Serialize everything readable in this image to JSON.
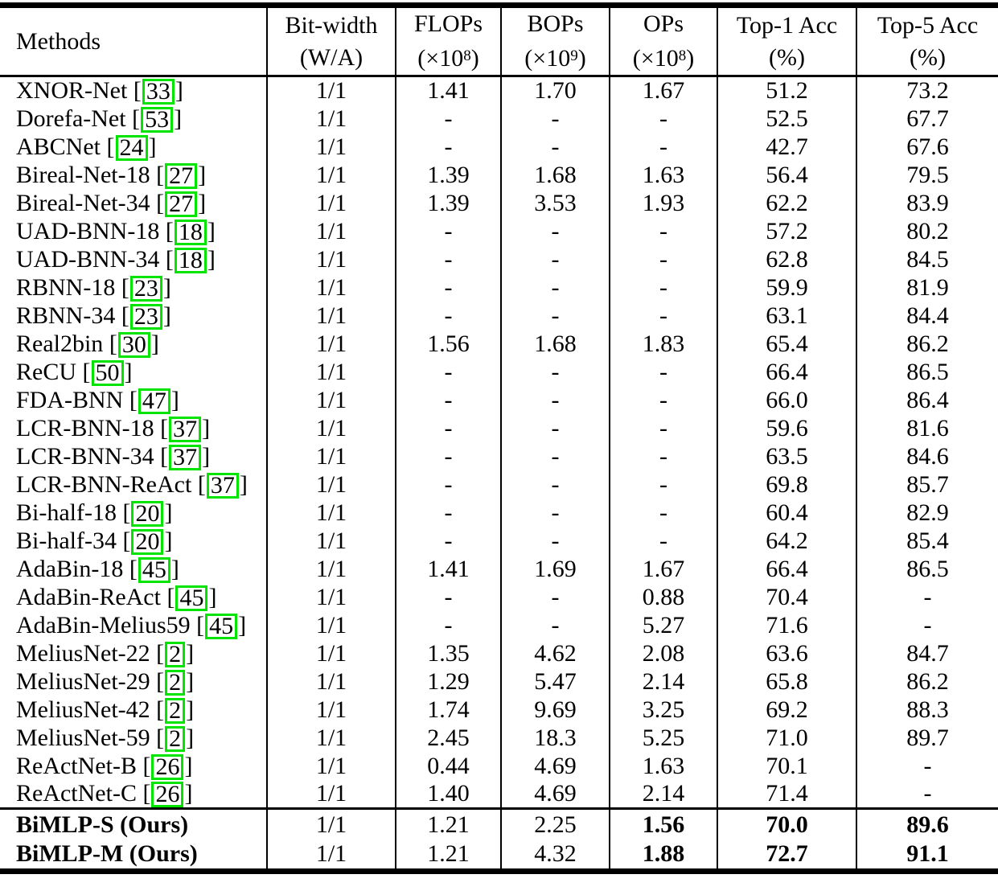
{
  "colors": {
    "citation_box": "#00e400",
    "rule": "#000000",
    "background": "#ffffff"
  },
  "table": {
    "columns": [
      {
        "id": "method",
        "line1": "Methods",
        "line2": ""
      },
      {
        "id": "bitwidth",
        "line1": "Bit-width",
        "line2": "(W/A)"
      },
      {
        "id": "flops",
        "line1": "FLOPs",
        "unit_pre": "(×10",
        "unit_sup": "8",
        "unit_post": ")"
      },
      {
        "id": "bops",
        "line1": "BOPs",
        "unit_pre": "(×10",
        "unit_sup": "9",
        "unit_post": ")"
      },
      {
        "id": "ops",
        "line1": "OPs",
        "unit_pre": "(×10",
        "unit_sup": "8",
        "unit_post": ")"
      },
      {
        "id": "top1",
        "line1": "Top-1 Acc",
        "line2": "(%)"
      },
      {
        "id": "top5",
        "line1": "Top-5 Acc",
        "line2": "(%)"
      }
    ],
    "rows": [
      {
        "method": "XNOR-Net",
        "cite": "33",
        "bitwidth": "1/1",
        "flops": "1.41",
        "bops": "1.70",
        "ops": "1.67",
        "top1": "51.2",
        "top5": "73.2"
      },
      {
        "method": "Dorefa-Net",
        "cite": "53",
        "bitwidth": "1/1",
        "flops": "-",
        "bops": "-",
        "ops": "-",
        "top1": "52.5",
        "top5": "67.7"
      },
      {
        "method": "ABCNet",
        "cite": "24",
        "bitwidth": "1/1",
        "flops": "-",
        "bops": "-",
        "ops": "-",
        "top1": "42.7",
        "top5": "67.6"
      },
      {
        "method": "Bireal-Net-18",
        "cite": "27",
        "bitwidth": "1/1",
        "flops": "1.39",
        "bops": "1.68",
        "ops": "1.63",
        "top1": "56.4",
        "top5": "79.5"
      },
      {
        "method": "Bireal-Net-34",
        "cite": "27",
        "bitwidth": "1/1",
        "flops": "1.39",
        "bops": "3.53",
        "ops": "1.93",
        "top1": "62.2",
        "top5": "83.9"
      },
      {
        "method": "UAD-BNN-18",
        "cite": "18",
        "bitwidth": "1/1",
        "flops": "-",
        "bops": "-",
        "ops": "-",
        "top1": "57.2",
        "top5": "80.2"
      },
      {
        "method": "UAD-BNN-34",
        "cite": "18",
        "bitwidth": "1/1",
        "flops": "-",
        "bops": "-",
        "ops": "-",
        "top1": "62.8",
        "top5": "84.5"
      },
      {
        "method": "RBNN-18",
        "cite": "23",
        "bitwidth": "1/1",
        "flops": "-",
        "bops": "-",
        "ops": "-",
        "top1": "59.9",
        "top5": "81.9"
      },
      {
        "method": "RBNN-34",
        "cite": "23",
        "bitwidth": "1/1",
        "flops": "-",
        "bops": "-",
        "ops": "-",
        "top1": "63.1",
        "top5": "84.4"
      },
      {
        "method": "Real2bin",
        "cite": "30",
        "bitwidth": "1/1",
        "flops": "1.56",
        "bops": "1.68",
        "ops": "1.83",
        "top1": "65.4",
        "top5": "86.2"
      },
      {
        "method": "ReCU",
        "cite": "50",
        "bitwidth": "1/1",
        "flops": "-",
        "bops": "-",
        "ops": "-",
        "top1": "66.4",
        "top5": "86.5"
      },
      {
        "method": "FDA-BNN",
        "cite": "47",
        "bitwidth": "1/1",
        "flops": "-",
        "bops": "-",
        "ops": "-",
        "top1": "66.0",
        "top5": "86.4"
      },
      {
        "method": "LCR-BNN-18",
        "cite": "37",
        "bitwidth": "1/1",
        "flops": "-",
        "bops": "-",
        "ops": "-",
        "top1": "59.6",
        "top5": "81.6"
      },
      {
        "method": "LCR-BNN-34",
        "cite": "37",
        "bitwidth": "1/1",
        "flops": "-",
        "bops": "-",
        "ops": "-",
        "top1": "63.5",
        "top5": "84.6"
      },
      {
        "method": "LCR-BNN-ReAct",
        "cite": "37",
        "bitwidth": "1/1",
        "flops": "-",
        "bops": "-",
        "ops": "-",
        "top1": "69.8",
        "top5": "85.7"
      },
      {
        "method": "Bi-half-18",
        "cite": "20",
        "bitwidth": "1/1",
        "flops": "-",
        "bops": "-",
        "ops": "-",
        "top1": "60.4",
        "top5": "82.9"
      },
      {
        "method": "Bi-half-34",
        "cite": "20",
        "bitwidth": "1/1",
        "flops": "-",
        "bops": "-",
        "ops": "-",
        "top1": "64.2",
        "top5": "85.4"
      },
      {
        "method": "AdaBin-18",
        "cite": "45",
        "bitwidth": "1/1",
        "flops": "1.41",
        "bops": "1.69",
        "ops": "1.67",
        "top1": "66.4",
        "top5": "86.5"
      },
      {
        "method": "AdaBin-ReAct",
        "cite": "45",
        "bitwidth": "1/1",
        "flops": "-",
        "bops": "-",
        "ops": "0.88",
        "top1": "70.4",
        "top5": "-"
      },
      {
        "method": "AdaBin-Melius59",
        "cite": "45",
        "bitwidth": "1/1",
        "flops": "-",
        "bops": "-",
        "ops": "5.27",
        "top1": "71.6",
        "top5": "-"
      },
      {
        "method": "MeliusNet-22",
        "cite": "2",
        "bitwidth": "1/1",
        "flops": "1.35",
        "bops": "4.62",
        "ops": "2.08",
        "top1": "63.6",
        "top5": "84.7"
      },
      {
        "method": "MeliusNet-29",
        "cite": "2",
        "bitwidth": "1/1",
        "flops": "1.29",
        "bops": "5.47",
        "ops": "2.14",
        "top1": "65.8",
        "top5": "86.2"
      },
      {
        "method": "MeliusNet-42",
        "cite": "2",
        "bitwidth": "1/1",
        "flops": "1.74",
        "bops": "9.69",
        "ops": "3.25",
        "top1": "69.2",
        "top5": "88.3"
      },
      {
        "method": "MeliusNet-59",
        "cite": "2",
        "bitwidth": "1/1",
        "flops": "2.45",
        "bops": "18.3",
        "ops": "5.25",
        "top1": "71.0",
        "top5": "89.7"
      },
      {
        "method": "ReActNet-B",
        "cite": "26",
        "bitwidth": "1/1",
        "flops": "0.44",
        "bops": "4.69",
        "ops": "1.63",
        "top1": "70.1",
        "top5": "-"
      },
      {
        "method": "ReActNet-C",
        "cite": "26",
        "bitwidth": "1/1",
        "flops": "1.40",
        "bops": "4.69",
        "ops": "2.14",
        "top1": "71.4",
        "top5": "-"
      }
    ],
    "ours_rows": [
      {
        "method": "BiMLP-S (Ours)",
        "cite": null,
        "bitwidth": "1/1",
        "flops": "1.21",
        "bops": "2.25",
        "ops": "1.56",
        "top1": "70.0",
        "top5": "89.6",
        "bold": [
          "ops",
          "top1",
          "top5"
        ],
        "bold_method": true
      },
      {
        "method": "BiMLP-M (Ours)",
        "cite": null,
        "bitwidth": "1/1",
        "flops": "1.21",
        "bops": "4.32",
        "ops": "1.88",
        "top1": "72.7",
        "top5": "91.1",
        "bold": [
          "ops",
          "top1",
          "top5"
        ],
        "bold_method": true
      }
    ]
  }
}
